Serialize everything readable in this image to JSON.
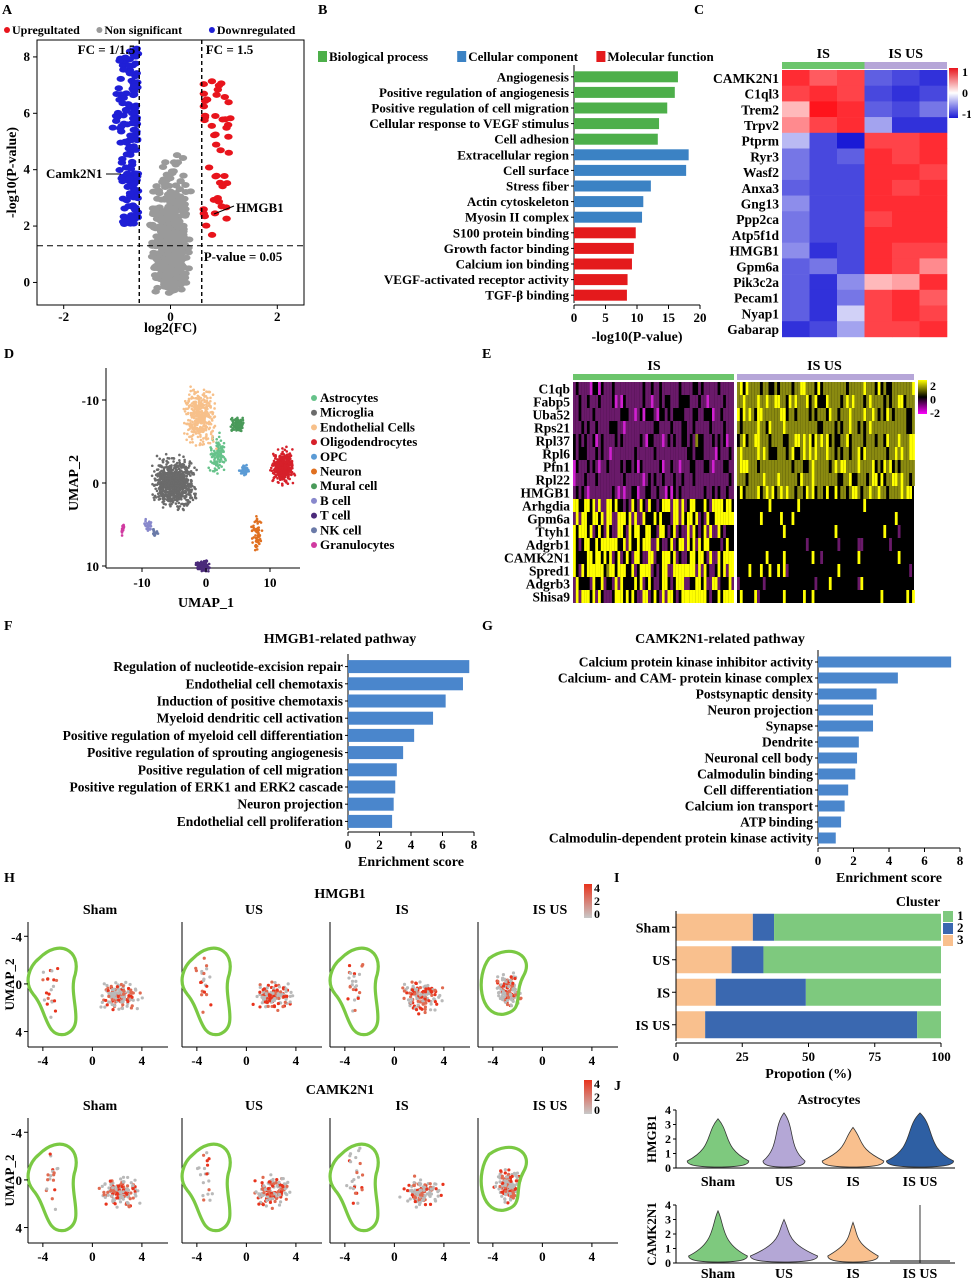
{
  "chart_data": [
    {
      "panel": "A",
      "type": "scatter",
      "legend": [
        {
          "label": "Upregultated",
          "color": "#e8141c"
        },
        {
          "label": "Non significant",
          "color": "#9a9a9a"
        },
        {
          "label": "Downregulated",
          "color": "#1f1fd6"
        }
      ],
      "xlabel": "log2(FC)",
      "ylabel": "-log10(P-value)",
      "xlim": [
        -2.5,
        2.5
      ],
      "ylim": [
        -0.8,
        8.6
      ],
      "xticks": [
        -2,
        0,
        2
      ],
      "yticks": [
        0,
        2,
        4,
        6,
        8
      ],
      "thresholds": {
        "fc_left": -0.585,
        "fc_right": 0.585,
        "p_line": 1.3
      },
      "annotations": [
        {
          "text": "FC = 1/1.5"
        },
        {
          "text": "FC = 1.5"
        },
        {
          "text": "P-value = 0.05"
        },
        {
          "text": "Camk2N1"
        },
        {
          "text": "HMGB1"
        }
      ]
    },
    {
      "panel": "B",
      "type": "bar",
      "orientation": "horizontal",
      "legend": [
        {
          "label": "Biological process",
          "color": "#4daf4a"
        },
        {
          "label": "Cellular component",
          "color": "#3b82c4"
        },
        {
          "label": "Molecular function",
          "color": "#e41a1c"
        }
      ],
      "categories": [
        "Angiogenesis",
        "Positive regulation of angiogenesis",
        "Positive regulation of cell migration",
        "Cellular response to VEGF stimulus",
        "Cell adhesion",
        "Extracellular region",
        "Cell surface",
        "Stress fiber",
        "Actin cytoskeleton",
        "Myosin II complex",
        "S100 protein binding",
        "Growth factor binding",
        "Calcium ion binding",
        "VEGF-activated receptor activity",
        "TGF-β binding"
      ],
      "groups": [
        0,
        0,
        0,
        0,
        0,
        1,
        1,
        1,
        1,
        1,
        2,
        2,
        2,
        2,
        2
      ],
      "values": [
        16.5,
        16.0,
        14.8,
        13.5,
        13.3,
        18.2,
        17.8,
        12.2,
        11.0,
        10.8,
        9.8,
        9.5,
        9.2,
        8.5,
        8.4
      ],
      "xlabel": "-log10(P-value)",
      "xlim": [
        0,
        20
      ],
      "xticks": [
        0,
        5,
        10,
        15,
        20
      ]
    },
    {
      "panel": "C",
      "type": "heatmap",
      "groups": [
        "IS",
        "IS US"
      ],
      "rows": [
        "CAMK2N1",
        "C1ql3",
        "Trem2",
        "Trpv2",
        "Ptprm",
        "Ryr3",
        "Wasf2",
        "Anxa3",
        "Gng13",
        "Ppp2ca",
        "Atp5f1d",
        "HMGB1",
        "Gpm6a",
        "Pik3c2a",
        "Pecam1",
        "Nyap1",
        "Gabarap"
      ],
      "values": [
        [
          0.9,
          0.7,
          0.8,
          -0.7,
          -0.8,
          -0.9
        ],
        [
          0.8,
          0.9,
          0.8,
          -0.8,
          -0.9,
          -0.8
        ],
        [
          0.3,
          1.0,
          0.9,
          -0.7,
          -0.8,
          -0.6
        ],
        [
          0.5,
          0.8,
          0.9,
          -0.4,
          -0.9,
          -0.9
        ],
        [
          -0.3,
          -0.8,
          -1.0,
          0.8,
          0.8,
          0.9
        ],
        [
          -0.6,
          -0.8,
          -0.7,
          0.9,
          0.8,
          0.9
        ],
        [
          -0.6,
          -0.8,
          -0.8,
          0.9,
          0.9,
          0.8
        ],
        [
          -0.7,
          -0.8,
          -0.8,
          0.9,
          0.8,
          0.9
        ],
        [
          -0.5,
          -0.8,
          -0.8,
          0.9,
          0.9,
          0.9
        ],
        [
          -0.6,
          -0.8,
          -0.8,
          0.8,
          0.9,
          0.9
        ],
        [
          -0.6,
          -0.8,
          -0.8,
          0.9,
          0.9,
          0.9
        ],
        [
          -0.5,
          -0.9,
          -0.8,
          0.9,
          0.8,
          0.8
        ],
        [
          -0.7,
          -0.6,
          -0.8,
          0.9,
          0.8,
          0.5
        ],
        [
          -0.7,
          -0.9,
          -0.5,
          0.3,
          0.4,
          0.9
        ],
        [
          -0.7,
          -0.9,
          -0.6,
          0.8,
          0.9,
          0.7
        ],
        [
          -0.7,
          -0.9,
          -0.2,
          0.8,
          0.9,
          0.8
        ],
        [
          -0.9,
          -0.8,
          -0.4,
          0.8,
          0.8,
          0.9
        ]
      ],
      "colorbar": {
        "ticks": [
          "1",
          "0",
          "-1"
        ],
        "high": "#e8141c",
        "mid": "#ffffff",
        "low": "#1a1ad6"
      }
    },
    {
      "panel": "D",
      "type": "scatter",
      "xlabel": "UMAP_1",
      "ylabel": "UMAP_2",
      "xticks": [
        -10,
        0,
        10
      ],
      "yticks": [
        -10,
        0,
        10
      ],
      "clusters": [
        {
          "name": "Astrocytes",
          "color": "#66c28a",
          "x": 2,
          "y": -3.5
        },
        {
          "name": "Microglia",
          "color": "#6b6b6b",
          "x": -5,
          "y": 0
        },
        {
          "name": "Endothelial Cells",
          "color": "#f7c08a",
          "x": -1,
          "y": -8
        },
        {
          "name": "Oligodendrocytes",
          "color": "#d6202a",
          "x": 12,
          "y": -2
        },
        {
          "name": "OPC",
          "color": "#5b9bd5",
          "x": 6,
          "y": -1.5
        },
        {
          "name": "Neuron",
          "color": "#e07020",
          "x": 8,
          "y": 6
        },
        {
          "name": "Mural cell",
          "color": "#4a9a5a",
          "x": 5,
          "y": -7
        },
        {
          "name": "B cell",
          "color": "#8888cc",
          "x": -9,
          "y": 5
        },
        {
          "name": "T cell",
          "color": "#4b2a7a",
          "x": -0.5,
          "y": 10
        },
        {
          "name": "NK cell",
          "color": "#6a7aa8",
          "x": -8,
          "y": 6
        },
        {
          "name": "Granulocytes",
          "color": "#d03aa0",
          "x": -13,
          "y": 5.5
        }
      ]
    },
    {
      "panel": "E",
      "type": "heatmap",
      "groups": [
        "IS",
        "IS US"
      ],
      "rows": [
        "C1qb",
        "Fabp5",
        "Uba52",
        "Rps21",
        "Rpl37",
        "Rpl6",
        "Pfn1",
        "Rpl22",
        "HMGB1",
        "Arhgdia",
        "Gpm6a",
        "Ttyh1",
        "Adgrb1",
        "CAMK2N1",
        "Spred1",
        "Adgrb3",
        "Shisa9"
      ],
      "colorbar": {
        "ticks": [
          "2",
          "0",
          "-2"
        ],
        "high": "#ffff00",
        "mid": "#000000",
        "low": "#ff00ff"
      }
    },
    {
      "panel": "F",
      "type": "bar",
      "orientation": "horizontal",
      "title": "HMGB1-related pathway",
      "categories": [
        "Regulation of nucleotide-excision repair",
        "Endothelial cell chemotaxis",
        "Induction of positive chemotaxis",
        "Myeloid dendritic cell activation",
        "Positive regulation of myeloid cell differentiation",
        "Positive regulation of sprouting angiogenesis",
        "Positive regulation of cell migration",
        "Positive regulation of ERK1 and ERK2 cascade",
        "Neuron projection",
        "Endothelial cell proliferation"
      ],
      "values": [
        7.7,
        7.3,
        6.2,
        5.4,
        4.2,
        3.5,
        3.1,
        3.0,
        2.9,
        2.8
      ],
      "xlabel": "Enrichment score",
      "xlim": [
        0,
        8
      ],
      "xticks": [
        0,
        2,
        4,
        6,
        8
      ]
    },
    {
      "panel": "G",
      "type": "bar",
      "orientation": "horizontal",
      "title": "CAMK2N1-related pathway",
      "categories": [
        "Calcium protein kinase inhibitor activity",
        "Calcium- and CAM- protein kinase complex",
        "Postsynaptic density",
        "Neuron projection",
        "Synapse",
        "Dendrite",
        "Neuronal cell body",
        "Calmodulin binding",
        "Cell differentiation",
        "Calcium ion transport",
        "ATP binding",
        "Calmodulin-dependent protein kinase activity"
      ],
      "values": [
        7.5,
        4.5,
        3.3,
        3.1,
        3.1,
        2.3,
        2.2,
        2.1,
        1.7,
        1.5,
        1.3,
        1.0
      ],
      "xlabel": "Enrichment score",
      "xlim": [
        0,
        8
      ],
      "xticks": [
        0,
        2,
        4,
        6,
        8
      ]
    },
    {
      "panel": "H",
      "type": "scatter",
      "genes": [
        "HMGB1",
        "CAMK2N1"
      ],
      "groups": [
        "Sham",
        "US",
        "IS",
        "IS US"
      ],
      "ylabel": "UMAP_2",
      "xticks": [
        -4,
        0,
        4
      ],
      "yticks": [
        -4,
        0,
        4
      ],
      "colorbar": {
        "ticks": [
          "4",
          "2",
          "0"
        ],
        "high": "#e8331c",
        "low": "#c8c8c8"
      }
    },
    {
      "panel": "I",
      "type": "bar",
      "orientation": "horizontal",
      "stacked": true,
      "categories": [
        "Sham",
        "US",
        "IS",
        "IS US"
      ],
      "series": [
        {
          "name": "1",
          "color": "#7ec97e",
          "values": [
            63,
            67,
            51,
            9
          ]
        },
        {
          "name": "2",
          "color": "#3a68b0",
          "values": [
            8,
            12,
            34,
            80
          ]
        },
        {
          "name": "3",
          "color": "#f9c08e",
          "values": [
            29,
            21,
            15,
            11
          ]
        }
      ],
      "legend_title": "Cluster",
      "xlabel": "Propotion (%)",
      "xlim": [
        0,
        100
      ],
      "xticks": [
        0,
        25,
        50,
        75,
        100
      ]
    },
    {
      "panel": "J",
      "type": "violin",
      "title": "Astrocytes",
      "groups": [
        "Sham",
        "US",
        "IS",
        "IS US"
      ],
      "colors": [
        "#7ec97e",
        "#b4a7d6",
        "#f9c08e",
        "#2e5fa3"
      ],
      "genes": [
        "HMGB1",
        "CAMK2N1"
      ],
      "yticks": [
        0,
        1,
        2,
        3,
        4
      ]
    }
  ],
  "panel_labels": [
    "A",
    "B",
    "C",
    "D",
    "E",
    "F",
    "G",
    "H",
    "I",
    "J"
  ]
}
